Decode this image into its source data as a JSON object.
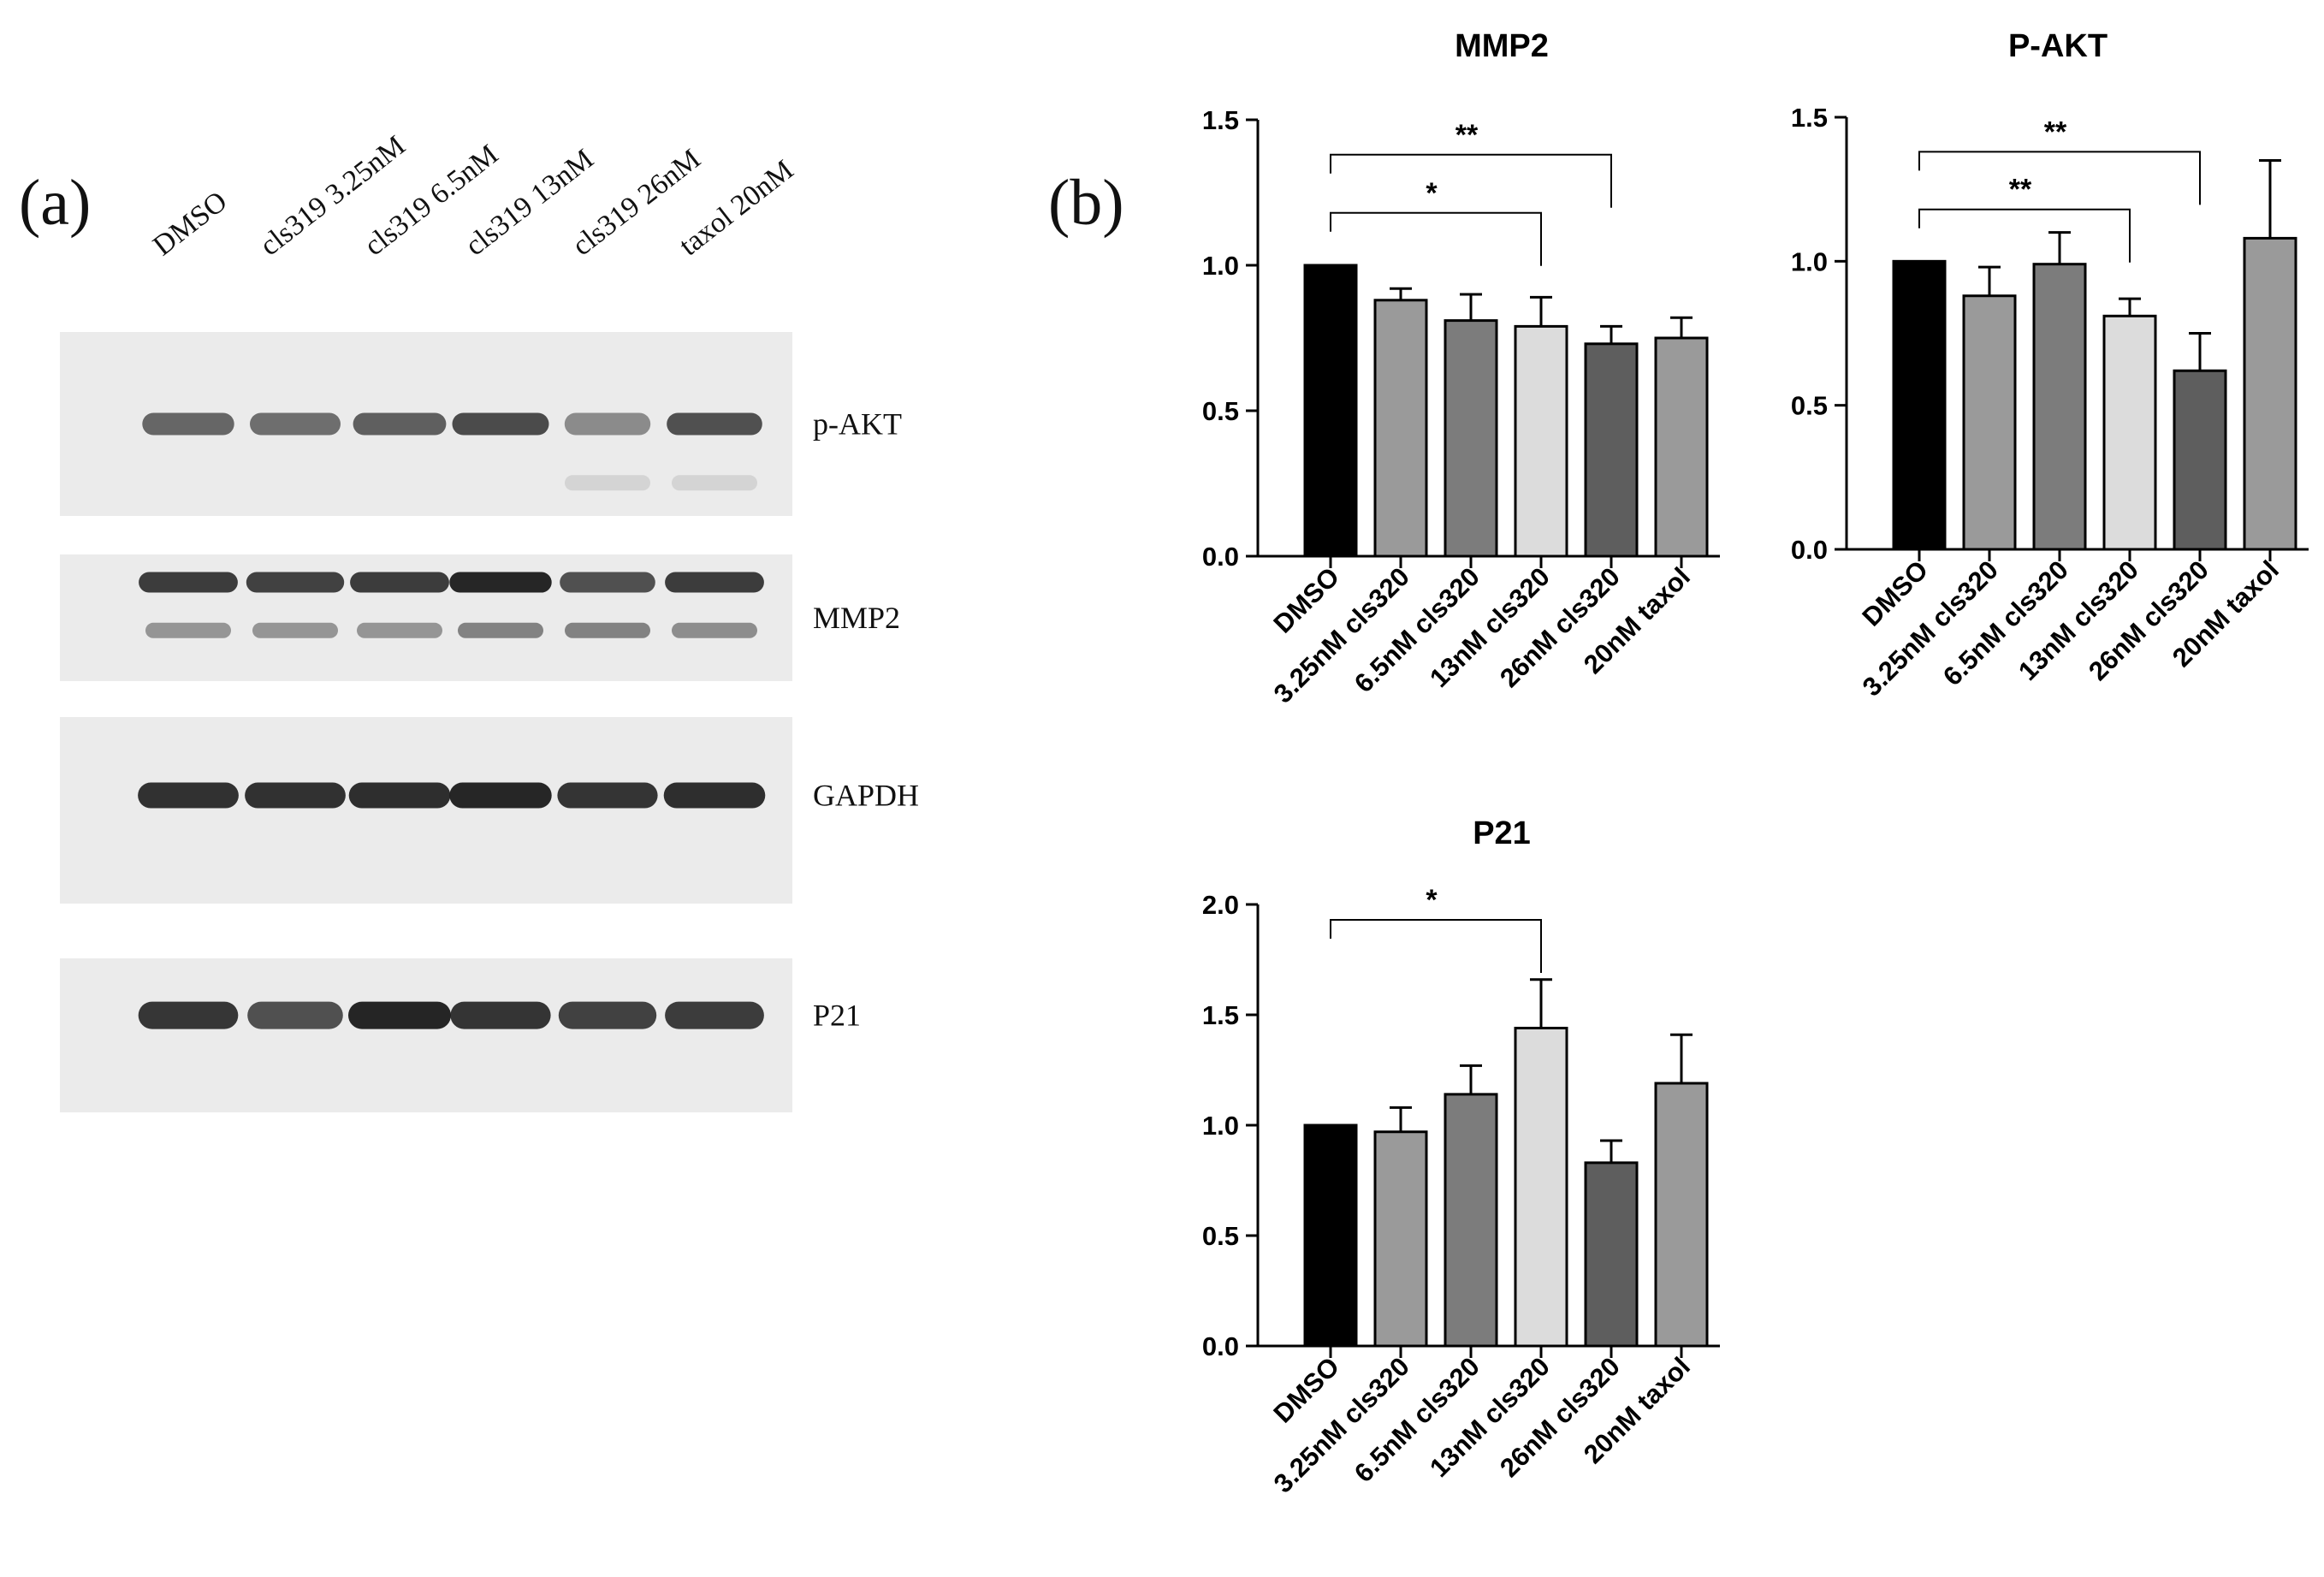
{
  "panel_a": {
    "label": "(a)",
    "lanes": [
      "DMSO",
      "cls319 3.25nM",
      "cls319 6.5nM",
      "cls319 13nM",
      "cls319 26nM",
      "taxol 20nM"
    ],
    "blots": [
      {
        "name": "p-AKT",
        "intensity": [
          0.55,
          0.5,
          0.6,
          0.75,
          0.3,
          0.7
        ],
        "secondary": [
          0.0,
          0.0,
          0.0,
          0.0,
          0.12,
          0.12
        ]
      },
      {
        "name": "MMP2",
        "intensity": [
          0.85,
          0.8,
          0.85,
          0.98,
          0.7,
          0.85
        ],
        "secondary": [
          0.45,
          0.45,
          0.45,
          0.55,
          0.55,
          0.5
        ]
      },
      {
        "name": "GAPDH",
        "intensity": [
          0.92,
          0.92,
          0.95,
          0.98,
          0.9,
          0.95
        ],
        "secondary": [
          0,
          0,
          0,
          0,
          0,
          0
        ]
      },
      {
        "name": "P21",
        "intensity": [
          0.88,
          0.7,
          1.0,
          0.9,
          0.8,
          0.85
        ],
        "secondary": [
          0,
          0,
          0,
          0,
          0,
          0
        ]
      }
    ]
  },
  "panel_b": {
    "label": "(b)"
  },
  "chart_data": [
    {
      "type": "bar",
      "title": "MMP2",
      "categories": [
        "DMSO",
        "3.25nM cls320",
        "6.5nM cls320",
        "13nM cls320",
        "26nM cls320",
        "20nM taxol"
      ],
      "values": [
        1.0,
        0.88,
        0.81,
        0.79,
        0.73,
        0.75
      ],
      "errors": [
        0.0,
        0.04,
        0.09,
        0.1,
        0.06,
        0.07
      ],
      "ylim": [
        0,
        1.5
      ],
      "yticks": [
        "0.0",
        "0.5",
        "1.0",
        "1.5"
      ],
      "significance": [
        {
          "from": "DMSO",
          "to": "13nM cls320",
          "label": "*"
        },
        {
          "from": "DMSO",
          "to": "26nM cls320",
          "label": "**"
        }
      ]
    },
    {
      "type": "bar",
      "title": "P-AKT",
      "categories": [
        "DMSO",
        "3.25nM cls320",
        "6.5nM cls320",
        "13nM cls320",
        "26nM cls320",
        "20nM taxol"
      ],
      "values": [
        1.0,
        0.88,
        0.99,
        0.81,
        0.62,
        1.08
      ],
      "errors": [
        0.0,
        0.1,
        0.11,
        0.06,
        0.13,
        0.27
      ],
      "ylim": [
        0,
        1.5
      ],
      "yticks": [
        "0.0",
        "0.5",
        "1.0",
        "1.5"
      ],
      "significance": [
        {
          "from": "DMSO",
          "to": "13nM cls320",
          "label": "**"
        },
        {
          "from": "DMSO",
          "to": "26nM cls320",
          "label": "**"
        }
      ]
    },
    {
      "type": "bar",
      "title": "P21",
      "categories": [
        "DMSO",
        "3.25nM cls320",
        "6.5nM cls320",
        "13nM cls320",
        "26nM cls320",
        "20nM taxol"
      ],
      "values": [
        1.0,
        0.97,
        1.14,
        1.44,
        0.83,
        1.19
      ],
      "errors": [
        0.0,
        0.11,
        0.13,
        0.22,
        0.1,
        0.22
      ],
      "ylim": [
        0,
        2.0
      ],
      "yticks": [
        "0.0",
        "0.5",
        "1.0",
        "1.5",
        "2.0"
      ],
      "significance": [
        {
          "from": "DMSO",
          "to": "13nM cls320",
          "label": "*"
        }
      ]
    }
  ],
  "colors": {
    "bars": [
      "#000000",
      "#9a9a9a",
      "#7c7c7c",
      "#dcdcdc",
      "#5e5e5e",
      "#9a9a9a"
    ],
    "blot_background": "#ebebeb",
    "band": "#1a1a1a"
  }
}
